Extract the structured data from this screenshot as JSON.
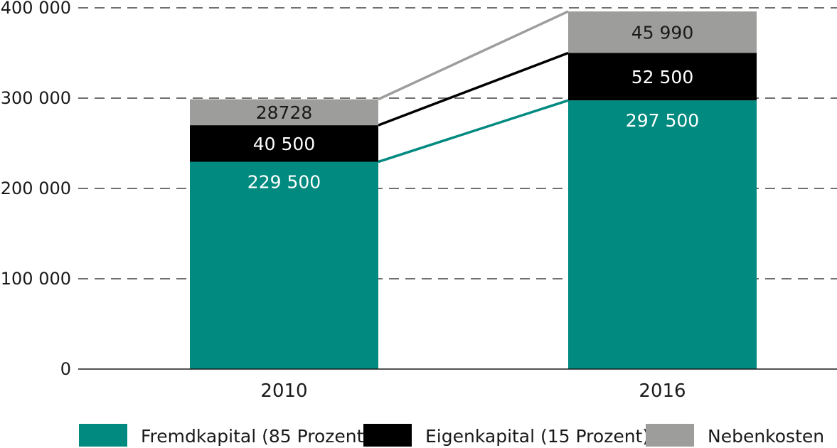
{
  "chart_data": {
    "type": "bar",
    "stacked": true,
    "categories": [
      "2010",
      "2016"
    ],
    "series": [
      {
        "name": "Fremdkapital (85 Prozent)",
        "color": "#008a80",
        "label_color": "#ffffff",
        "values": [
          229500,
          297500
        ],
        "labels": [
          "229 500",
          "297 500"
        ]
      },
      {
        "name": "Eigenkapital (15 Prozent)",
        "color": "#000000",
        "label_color": "#ffffff",
        "values": [
          40500,
          52500
        ],
        "labels": [
          "40 500",
          "52 500"
        ]
      },
      {
        "name": "Nebenkosten",
        "color": "#9d9d9c",
        "label_color": "#1a1a1a",
        "values": [
          28728,
          45990
        ],
        "labels": [
          "28728",
          "45 990"
        ]
      }
    ],
    "connector_colors": [
      "#008a80",
      "#000000",
      "#9d9d9c"
    ],
    "ylim": [
      0,
      400000
    ],
    "yticks": [
      0,
      100000,
      200000,
      300000,
      400000
    ],
    "ytick_labels": [
      "0",
      "100 000",
      "200 000",
      "300 000",
      "400 000"
    ],
    "grid": "dashed",
    "legend_position": "bottom",
    "title": "",
    "xlabel": "",
    "ylabel": ""
  }
}
